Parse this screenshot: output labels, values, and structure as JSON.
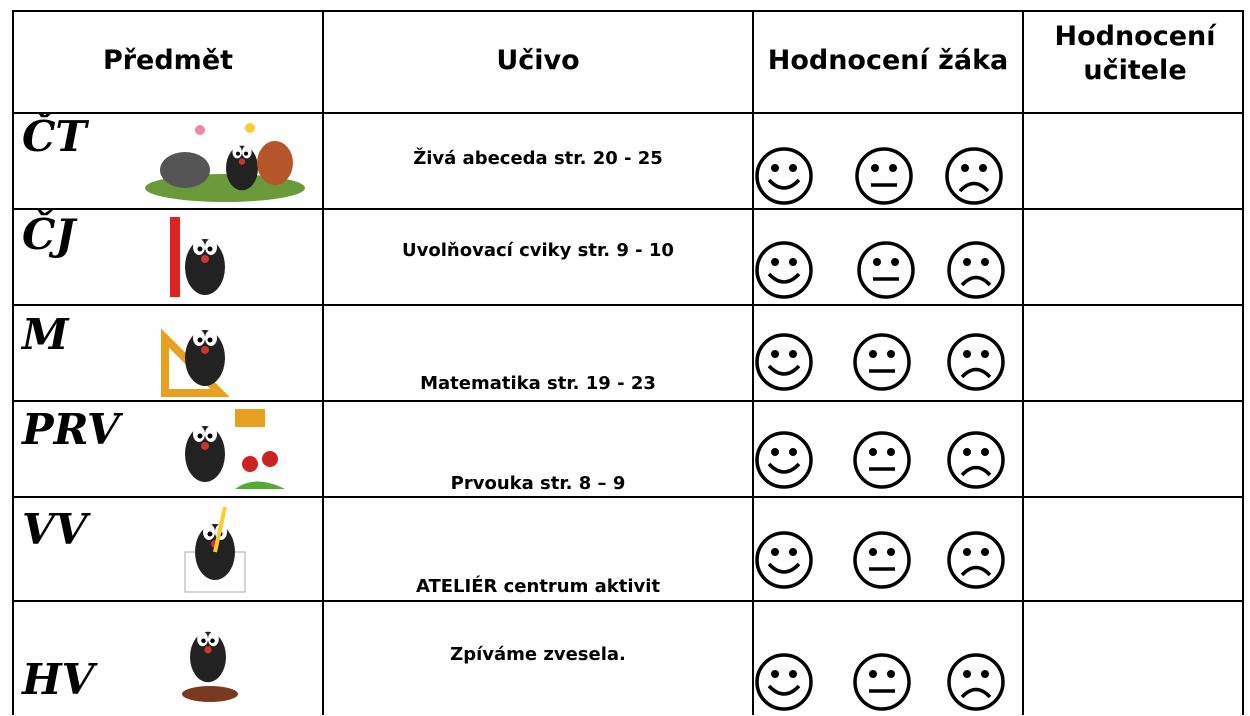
{
  "header": {
    "columns": [
      "Předmět",
      "Učivo",
      "Hodnocení žáka",
      "Hodnocení učitele"
    ]
  },
  "rows": [
    {
      "subject": "ČT",
      "topic": "Živá abeceda str. 20 - 25"
    },
    {
      "subject": "ČJ",
      "topic": "Uvolňovací cviky str. 9 - 10"
    },
    {
      "subject": "M",
      "topic": "Matematika str. 19 - 23"
    },
    {
      "subject": "PRV",
      "topic": "Prvouka str. 8 – 9"
    },
    {
      "subject": "VV",
      "topic": "ATELIÉR centrum aktivit"
    },
    {
      "subject": "HV",
      "topic": "Zpíváme zvesela."
    }
  ]
}
